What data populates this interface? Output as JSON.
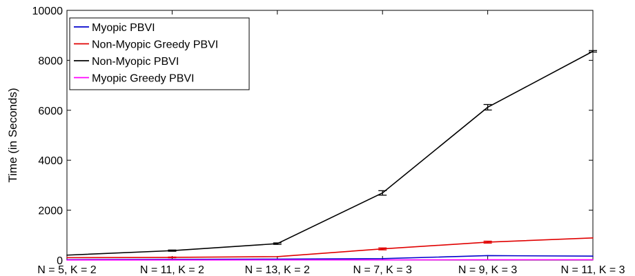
{
  "chart_data": {
    "type": "line",
    "title": "",
    "xlabel": "",
    "ylabel": "Time (in Seconds)",
    "categories": [
      "N = 5, K = 2",
      "N = 11, K = 2",
      "N = 13, K = 2",
      "N = 7, K = 3",
      "N = 9, K = 3",
      "N = 11, K = 3"
    ],
    "ylim": [
      0,
      10000
    ],
    "yticks": [
      0,
      2000,
      4000,
      6000,
      8000,
      10000
    ],
    "grid": false,
    "legend_position": "top-left",
    "series": [
      {
        "name": "Myopic PBVI",
        "color": "#0000cc",
        "values": [
          20,
          30,
          40,
          60,
          180,
          160
        ],
        "errors": [
          0,
          0,
          0,
          0,
          0,
          0
        ]
      },
      {
        "name": "Non-Myopic Greedy PBVI",
        "color": "#e00000",
        "values": [
          100,
          110,
          140,
          450,
          720,
          890
        ],
        "errors": [
          0,
          15,
          0,
          40,
          40,
          0
        ]
      },
      {
        "name": "Non-Myopic PBVI",
        "color": "#000000",
        "values": [
          200,
          380,
          660,
          2690,
          6120,
          8360
        ],
        "errors": [
          0,
          25,
          30,
          90,
          110,
          30
        ]
      },
      {
        "name": "Myopic Greedy PBVI",
        "color": "#ff00ff",
        "values": [
          5,
          5,
          8,
          10,
          15,
          15
        ],
        "errors": [
          0,
          0,
          0,
          0,
          0,
          0
        ]
      }
    ]
  }
}
